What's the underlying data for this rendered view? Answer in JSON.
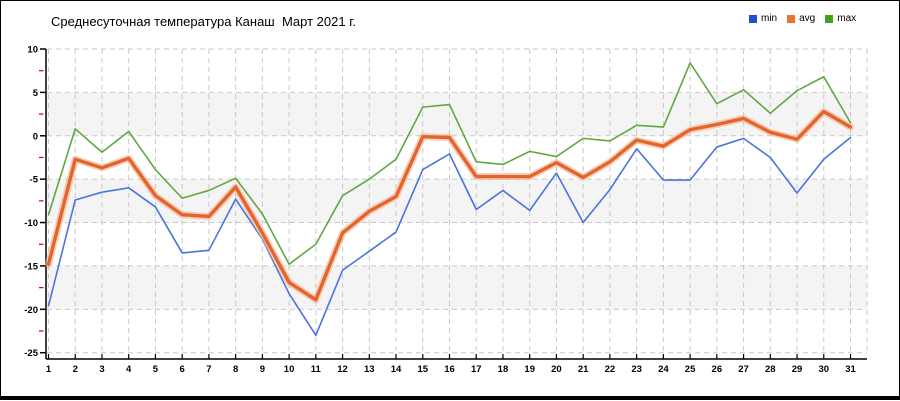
{
  "header": {
    "title": "Среднесуточная температура Канаш  Март 2021 г."
  },
  "chart_data": {
    "type": "line",
    "title": "Среднесуточная температура Канаш  Март 2021 г.",
    "xlabel": "",
    "ylabel": "",
    "x": [
      1,
      2,
      3,
      4,
      5,
      6,
      7,
      8,
      9,
      10,
      11,
      12,
      13,
      14,
      15,
      16,
      17,
      18,
      19,
      20,
      21,
      22,
      23,
      24,
      25,
      26,
      27,
      28,
      29,
      30,
      31
    ],
    "xtick_labels": [
      "1",
      "2",
      "3",
      "4",
      "5",
      "6",
      "7",
      "8",
      "9",
      "10",
      "11",
      "12",
      "13",
      "14",
      "15",
      "16",
      "17",
      "18",
      "19",
      "20",
      "21",
      "22",
      "23",
      "24",
      "25",
      "26",
      "27",
      "28",
      "29",
      "30",
      "31"
    ],
    "ylim": [
      -25,
      10
    ],
    "yticks": [
      10,
      5,
      0,
      -5,
      -10,
      -15,
      -20,
      -25
    ],
    "ytick_labels": [
      "10",
      "5",
      "0",
      "-5",
      "-10",
      "-15",
      "-20",
      "-25"
    ],
    "yticks_minor": [
      7.5,
      2.5,
      -2.5,
      -7.5,
      -12.5,
      -17.5,
      -22.5
    ],
    "grid": "dashed",
    "legend_position": "top-right",
    "colors": {
      "grid_color": "#c9c9c9",
      "band_fill": "#f4f4f4",
      "axis_color": "#000000",
      "minor_tick_color": "#cc0000",
      "avg_halo": "#f6b896"
    },
    "series": [
      {
        "name": "min",
        "color": "#4a74dd",
        "legend_color": "#1f4fd6",
        "width": 1.6,
        "values": [
          -19.6,
          -7.4,
          -6.5,
          -6.0,
          -8.2,
          -13.5,
          -13.2,
          -7.3,
          -11.9,
          -18.2,
          -23.0,
          -15.5,
          -13.3,
          -11.1,
          -3.9,
          -2.1,
          -8.5,
          -6.3,
          -8.6,
          -4.3,
          -10.0,
          -6.2,
          -1.5,
          -5.1,
          -5.1,
          -1.3,
          -0.3,
          -2.5,
          -6.6,
          -2.7,
          -0.2
        ]
      },
      {
        "name": "avg",
        "color": "#e2652e",
        "legend_color": "#e8732a",
        "width": 3.4,
        "values": [
          -14.8,
          -2.7,
          -3.7,
          -2.6,
          -6.9,
          -9.1,
          -9.3,
          -5.9,
          -11.2,
          -16.9,
          -18.9,
          -11.2,
          -8.7,
          -7.0,
          -0.1,
          -0.2,
          -4.7,
          -4.7,
          -4.7,
          -3.1,
          -4.8,
          -3.0,
          -0.5,
          -1.2,
          0.7,
          1.3,
          2.0,
          0.4,
          -0.4,
          2.8,
          1.0
        ]
      },
      {
        "name": "max",
        "color": "#5fa844",
        "legend_color": "#3ea41e",
        "width": 1.6,
        "values": [
          -9.1,
          0.8,
          -1.9,
          0.5,
          -3.9,
          -7.2,
          -6.3,
          -4.9,
          -9.0,
          -14.8,
          -12.5,
          -6.9,
          -5.0,
          -2.7,
          3.3,
          3.6,
          -3.0,
          -3.3,
          -1.8,
          -2.4,
          -0.3,
          -0.6,
          1.2,
          1.0,
          8.4,
          3.7,
          5.3,
          2.6,
          5.2,
          6.8,
          1.5
        ]
      }
    ]
  }
}
